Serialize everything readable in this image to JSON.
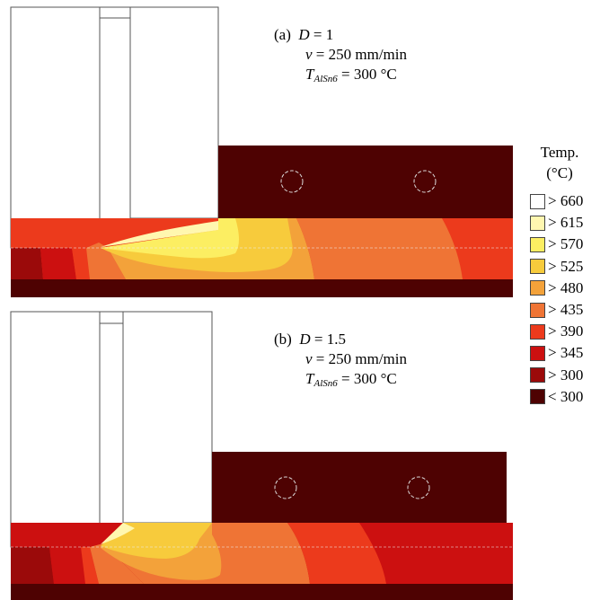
{
  "panels": [
    {
      "label": "(a)",
      "d_symbol": "D",
      "d_value": "= 1",
      "v_symbol": "v",
      "v_value": "= 250 mm/min",
      "t_symbol": "T",
      "t_sub": "AlSn6",
      "t_value": "= 300 °C"
    },
    {
      "label": "(b)",
      "d_symbol": "D",
      "d_value": "= 1.5",
      "v_symbol": "v",
      "v_value": "= 250 mm/min",
      "t_symbol": "T",
      "t_sub": "AlSn6",
      "t_value": "= 300 °C"
    }
  ],
  "legend": {
    "title_line1": "Temp.",
    "title_line2": "(°C)",
    "items": [
      {
        "label": "> 660",
        "color": "#ffffff"
      },
      {
        "label": "> 615",
        "color": "#fff7b0"
      },
      {
        "label": "> 570",
        "color": "#fcee62"
      },
      {
        "label": "> 525",
        "color": "#f7cb3c"
      },
      {
        "label": "> 480",
        "color": "#f3a23a"
      },
      {
        "label": "> 435",
        "color": "#ef7435"
      },
      {
        "label": "> 390",
        "color": "#ec3a1c"
      },
      {
        "label": "> 345",
        "color": "#cc1010"
      },
      {
        "label": "> 300",
        "color": "#9b0a0a"
      },
      {
        "label": "< 300",
        "color": "#4e0202"
      }
    ]
  }
}
